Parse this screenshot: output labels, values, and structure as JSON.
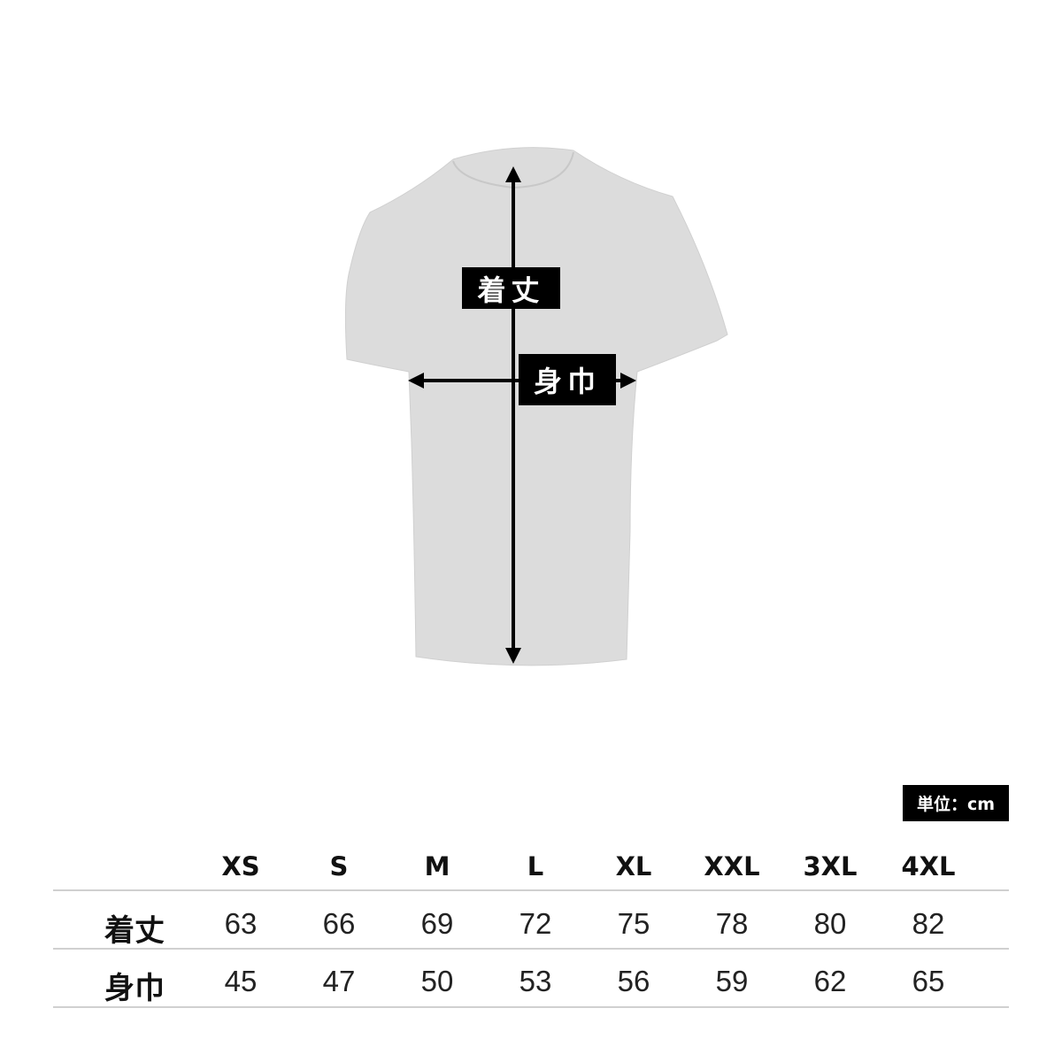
{
  "diagram": {
    "length_label": "着丈",
    "width_label": "身巾",
    "shirt_color": "#dcdcdc"
  },
  "unit": "単位：cm",
  "table": {
    "sizes": [
      "XS",
      "S",
      "M",
      "L",
      "XL",
      "XXL",
      "3XL",
      "4XL"
    ],
    "rows": [
      {
        "label": "着丈",
        "values": [
          "63",
          "66",
          "69",
          "72",
          "75",
          "78",
          "80",
          "82"
        ]
      },
      {
        "label": "身巾",
        "values": [
          "45",
          "47",
          "50",
          "53",
          "56",
          "59",
          "62",
          "65"
        ]
      }
    ]
  }
}
